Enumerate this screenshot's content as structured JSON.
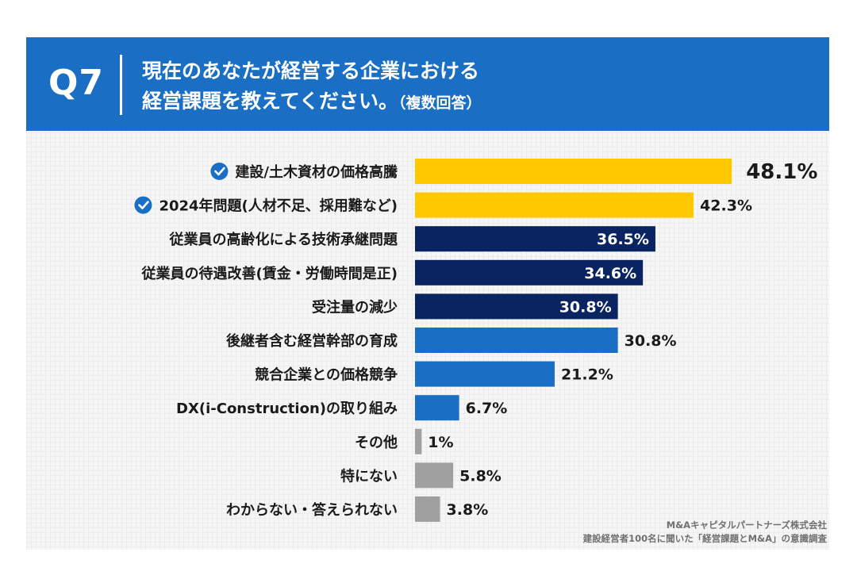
{
  "header": {
    "q_label": "Q7",
    "title_line1": "現在のあなたが経営する企業における",
    "title_line2": "経営課題を教えてください。",
    "title_note": "（複数回答）"
  },
  "colors": {
    "header_bg": "#1a6fc4",
    "highlight": "#ffc800",
    "navy": "#0a2461",
    "blue": "#1a6fc4",
    "gray": "#a0a0a0",
    "check": "#1a6fc4"
  },
  "chart_data": {
    "type": "bar",
    "orientation": "horizontal",
    "title": "現在のあなたが経営する企業における経営課題を教えてください。（複数回答）",
    "xlim": [
      0,
      50
    ],
    "categories": [
      "建設/土木資材の価格高騰",
      "2024年問題(人材不足、採用難など)",
      "従業員の高齢化による技術承継問題",
      "従業員の待遇改善(賃金・労働時間是正)",
      "受注量の減少",
      "後継者含む経営幹部の育成",
      "競合企業との価格競争",
      "DX(i-Construction)の取り組み",
      "その他",
      "特にない",
      "わからない・答えられない"
    ],
    "values": [
      48.1,
      42.3,
      36.5,
      34.6,
      30.8,
      30.8,
      21.2,
      6.7,
      1,
      5.8,
      3.8
    ],
    "value_labels": [
      "48.1%",
      "42.3%",
      "36.5%",
      "34.6%",
      "30.8%",
      "30.8%",
      "21.2%",
      "6.7%",
      "1%",
      "5.8%",
      "3.8%"
    ],
    "bar_color_groups": [
      "highlight",
      "highlight",
      "navy",
      "navy",
      "navy",
      "blue",
      "blue",
      "blue",
      "gray",
      "gray",
      "gray"
    ],
    "checked": [
      true,
      true,
      false,
      false,
      false,
      false,
      false,
      false,
      false,
      false,
      false
    ]
  },
  "footer": {
    "company": "M&Aキャピタルパートナーズ株式会社",
    "source": "建設経営者100名に聞いた「経営課題とM&A」の意識調査"
  }
}
